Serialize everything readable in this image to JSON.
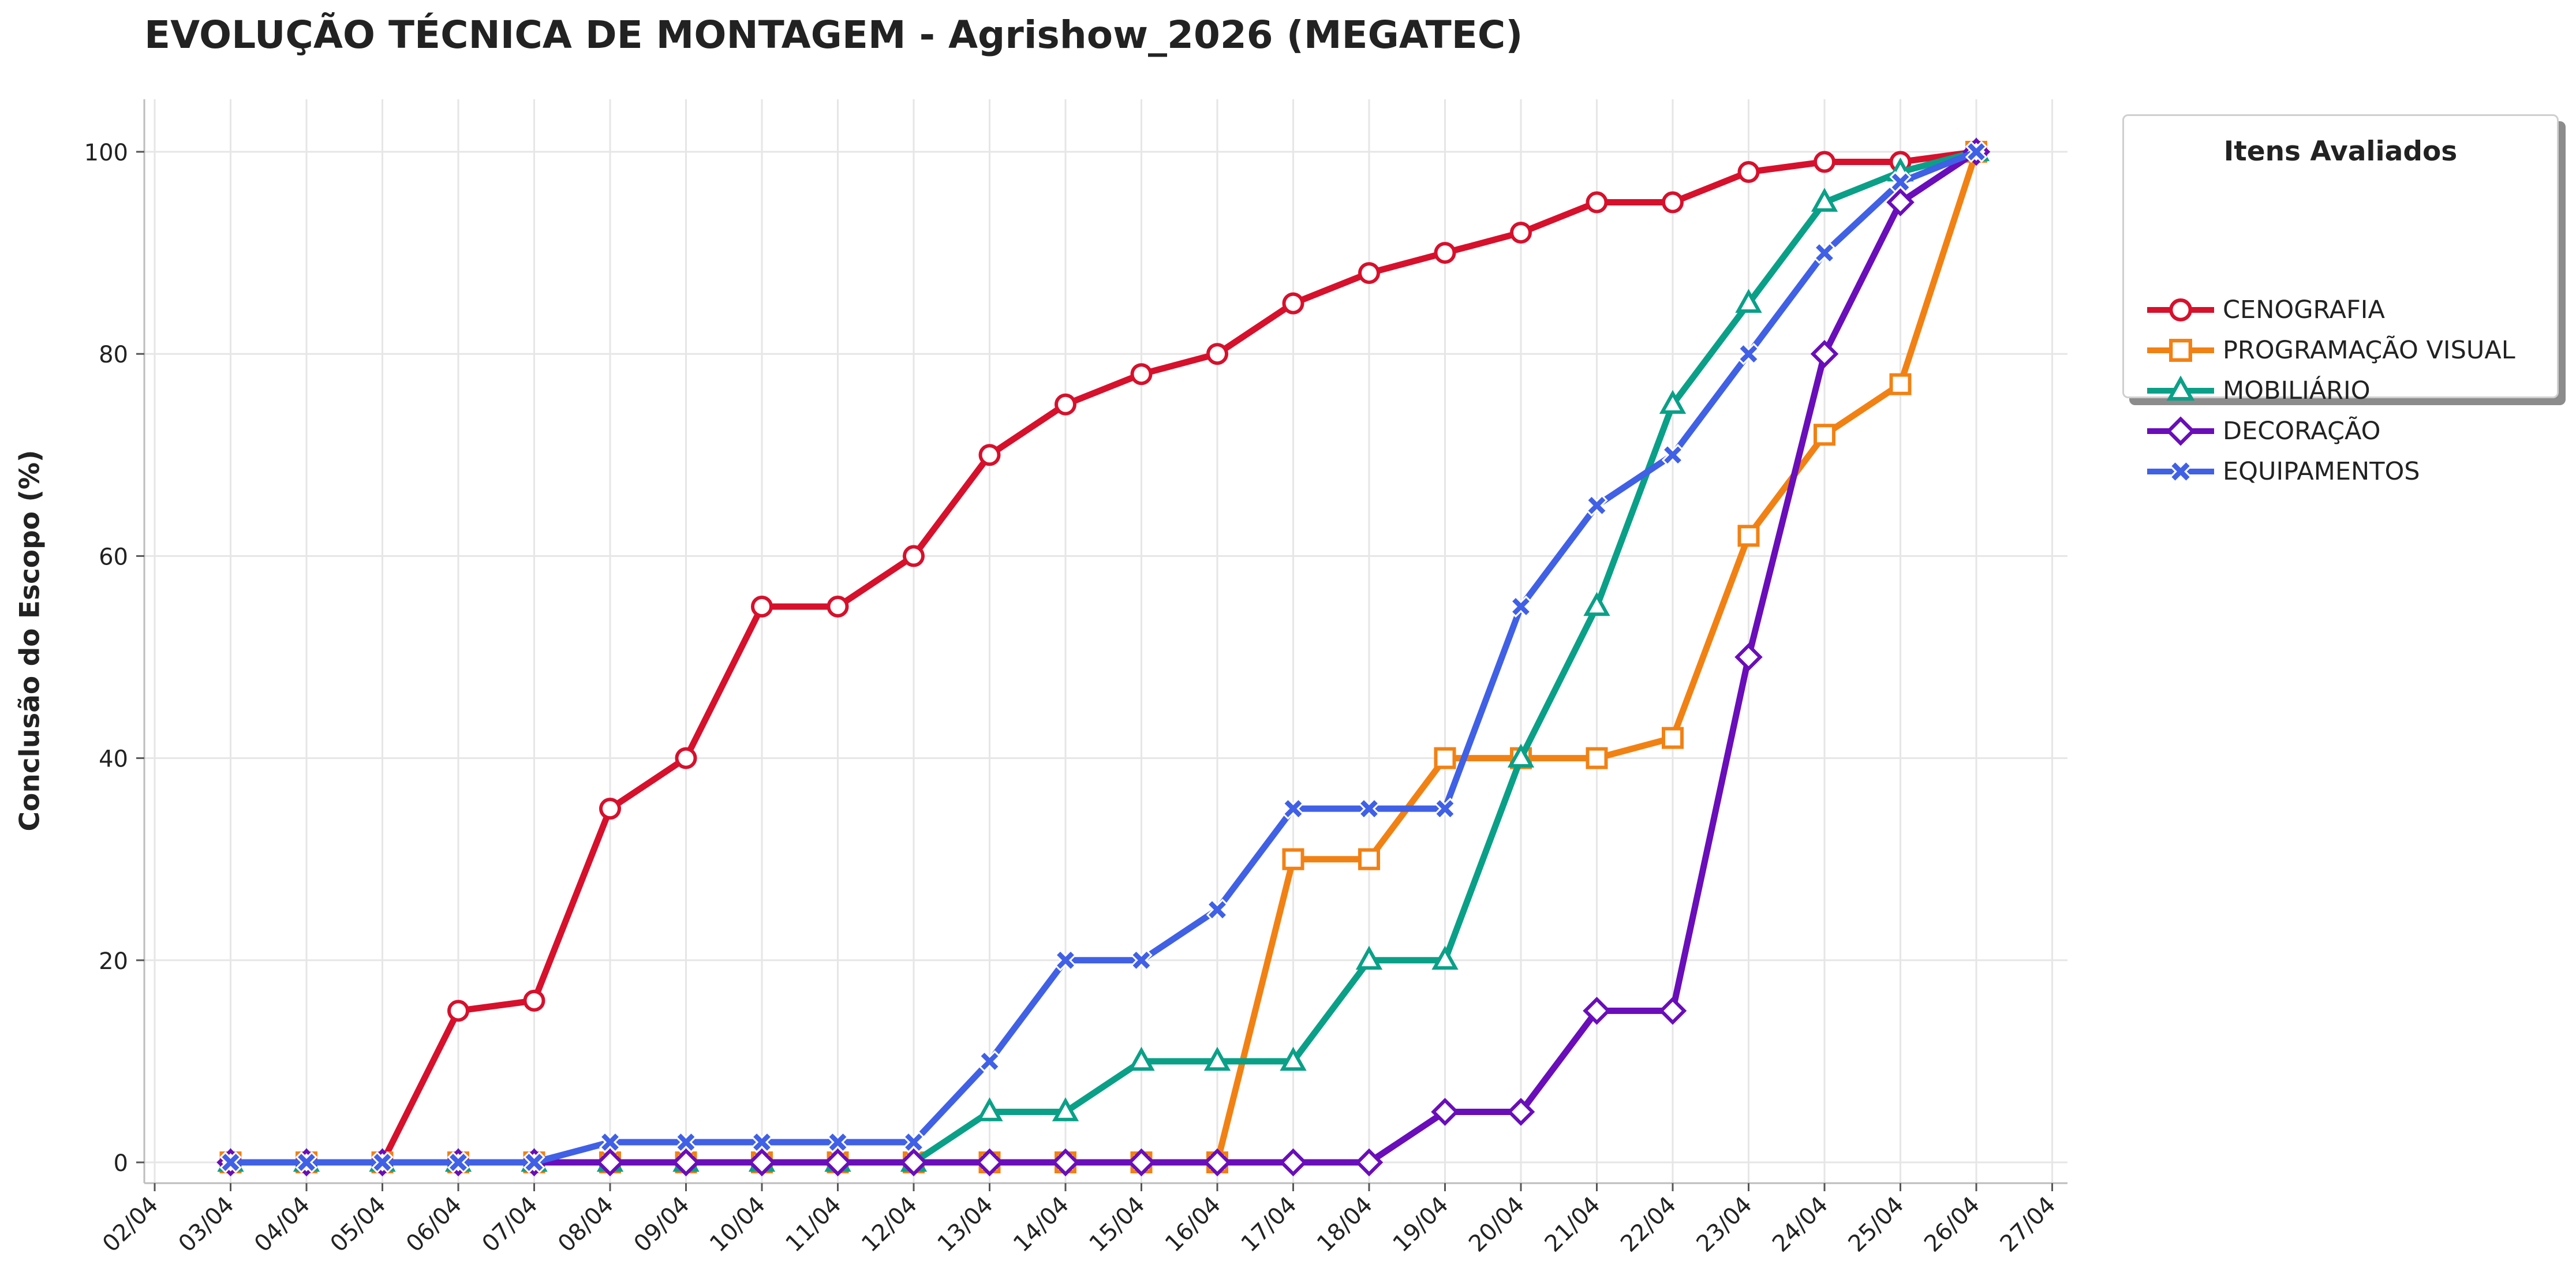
{
  "chart_data": {
    "type": "line",
    "title": "EVOLUÇÃO TÉCNICA DE MONTAGEM - Agrishow_2026 (MEGATEC)",
    "xlabel": "",
    "ylabel": "Conclusão do Escopo (%)",
    "x_ticks": [
      "02/04",
      "03/04",
      "04/04",
      "05/04",
      "06/04",
      "07/04",
      "08/04",
      "09/04",
      "10/04",
      "11/04",
      "12/04",
      "13/04",
      "14/04",
      "15/04",
      "16/04",
      "17/04",
      "18/04",
      "19/04",
      "20/04",
      "21/04",
      "22/04",
      "23/04",
      "24/04",
      "25/04",
      "26/04",
      "27/04"
    ],
    "x": [
      "03/04",
      "04/04",
      "05/04",
      "06/04",
      "07/04",
      "08/04",
      "09/04",
      "10/04",
      "11/04",
      "12/04",
      "13/04",
      "14/04",
      "15/04",
      "16/04",
      "17/04",
      "18/04",
      "19/04",
      "20/04",
      "21/04",
      "22/04",
      "23/04",
      "24/04",
      "25/04",
      "26/04"
    ],
    "y_ticks": [
      0,
      20,
      40,
      60,
      80,
      100
    ],
    "ylim": [
      -2,
      105
    ],
    "grid": true,
    "legend": {
      "title": "Itens Avaliados",
      "position": "outside-top-right"
    },
    "series": [
      {
        "name": "CENOGRAFIA",
        "color": "#d7102c",
        "marker": "circle",
        "values": [
          0,
          0,
          0,
          15,
          16,
          35,
          40,
          55,
          55,
          60,
          70,
          75,
          78,
          80,
          85,
          88,
          90,
          92,
          95,
          95,
          98,
          99,
          99,
          100
        ]
      },
      {
        "name": "PROGRAMAÇÃO VISUAL",
        "color": "#f28113",
        "marker": "square",
        "values": [
          0,
          0,
          0,
          0,
          0,
          0,
          0,
          0,
          0,
          0,
          0,
          0,
          0,
          0,
          30,
          30,
          40,
          40,
          40,
          42,
          62,
          72,
          77,
          100
        ]
      },
      {
        "name": "MOBILIÁRIO",
        "color": "#0aa088",
        "marker": "triangle",
        "values": [
          0,
          0,
          0,
          0,
          0,
          0,
          0,
          0,
          0,
          0,
          5,
          5,
          10,
          10,
          10,
          20,
          20,
          40,
          55,
          75,
          85,
          95,
          98,
          100
        ]
      },
      {
        "name": "DECORAÇÃO",
        "color": "#6a0dba",
        "marker": "diamond",
        "values": [
          0,
          0,
          0,
          0,
          0,
          0,
          0,
          0,
          0,
          0,
          0,
          0,
          0,
          0,
          0,
          0,
          5,
          5,
          15,
          15,
          50,
          80,
          95,
          100
        ]
      },
      {
        "name": "EQUIPAMENTOS",
        "color": "#4060e6",
        "marker": "x",
        "values": [
          0,
          0,
          0,
          0,
          0,
          2,
          2,
          2,
          2,
          2,
          10,
          20,
          20,
          25,
          35,
          35,
          35,
          55,
          65,
          70,
          80,
          90,
          97,
          100
        ]
      }
    ]
  }
}
